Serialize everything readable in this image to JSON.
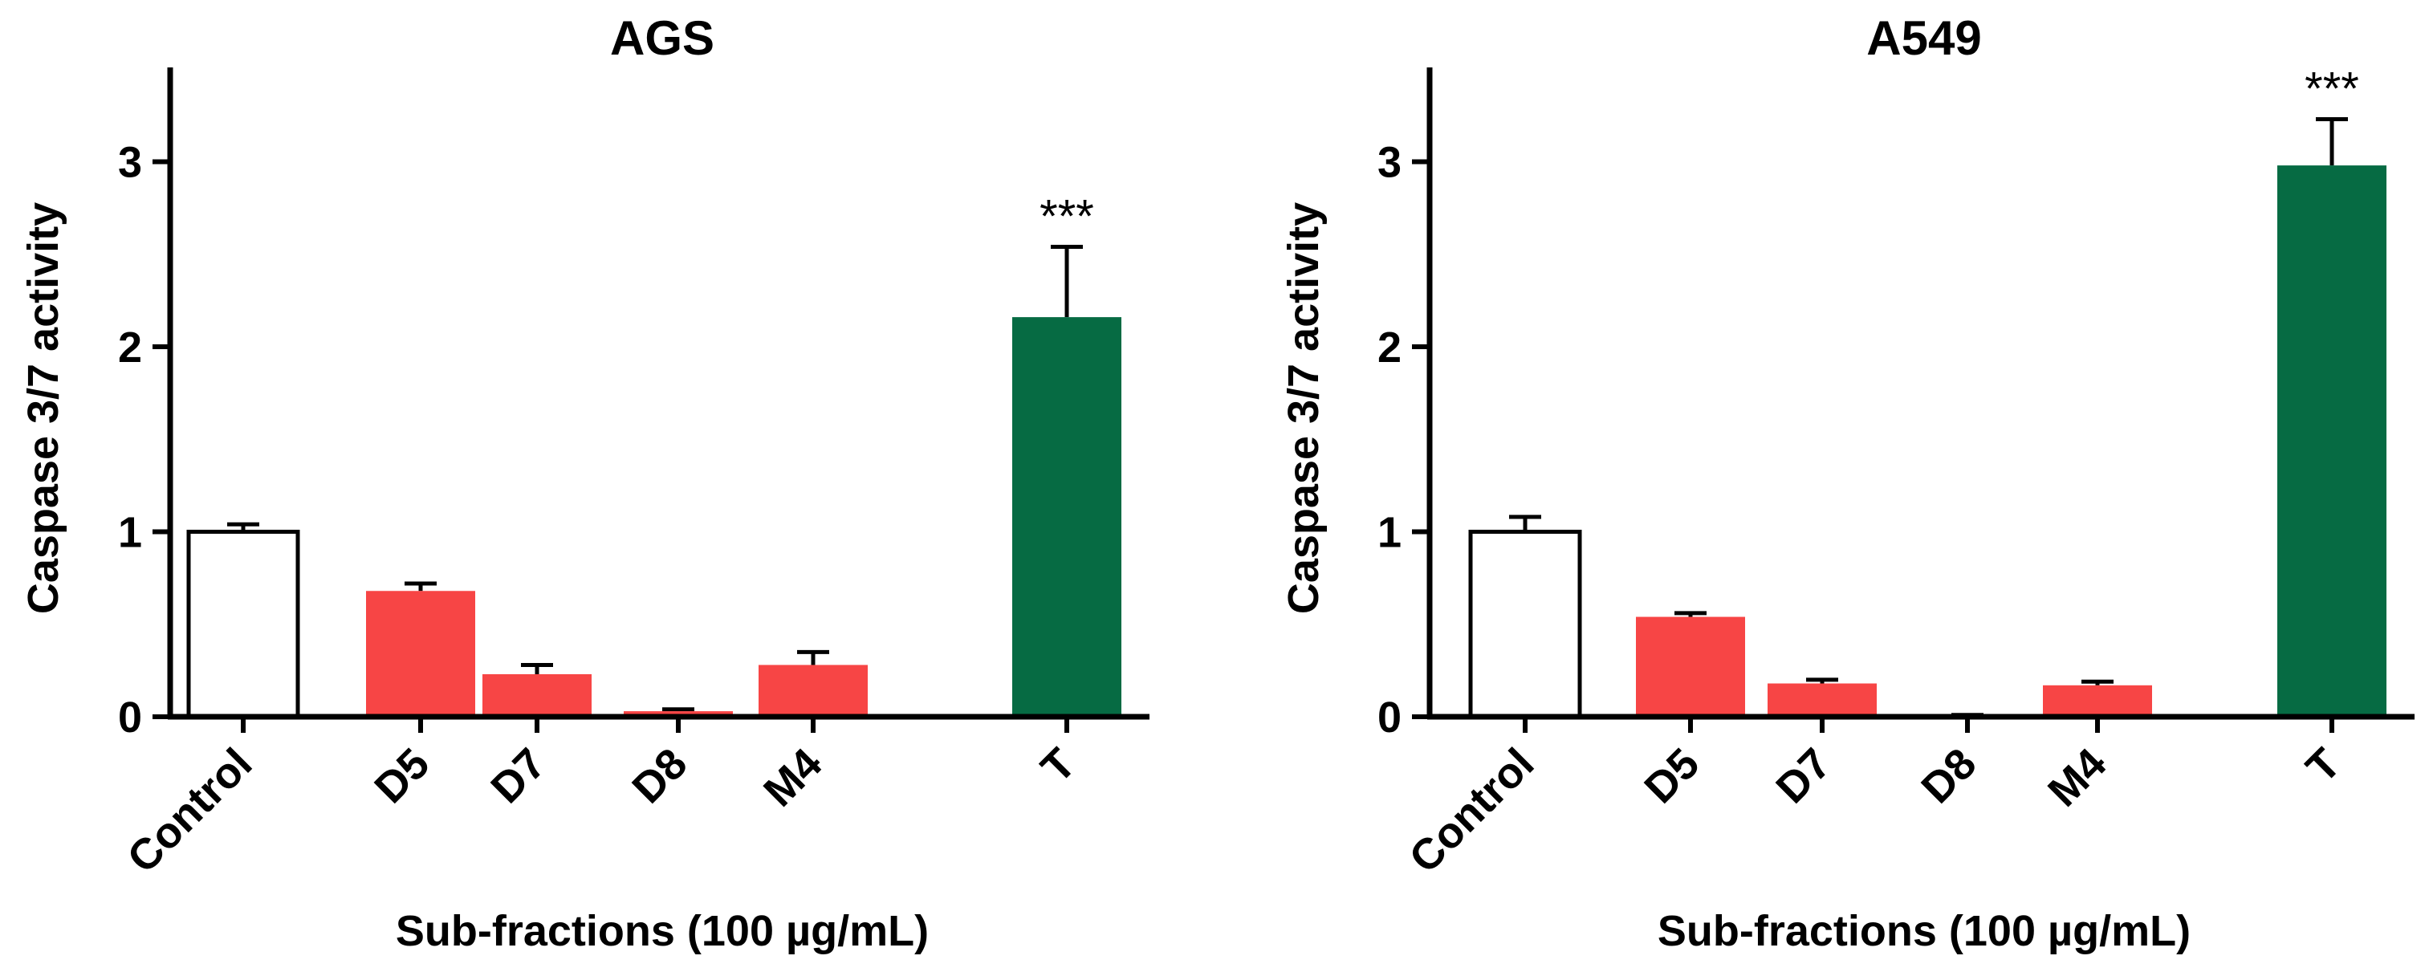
{
  "colors": {
    "control": "#ffffff",
    "subfraction": "#f74545",
    "treatment": "#066b43",
    "axis": "#000000"
  },
  "chart_data": [
    {
      "type": "bar",
      "title": "AGS",
      "categories": [
        "Control",
        "D5",
        "D7",
        "D8",
        "M4",
        "T"
      ],
      "values": [
        1.0,
        0.68,
        0.23,
        0.03,
        0.28,
        2.16
      ],
      "errors": [
        0.04,
        0.04,
        0.05,
        0.01,
        0.07,
        0.38
      ],
      "significance": [
        "",
        "",
        "",
        "",
        "",
        "***"
      ],
      "xlabel": "Sub-fractions (100 µg/mL)",
      "ylabel": "Caspase 3/7 activity",
      "ylim": [
        0,
        3.5
      ],
      "yticks": [
        "0",
        "1",
        "2",
        "3"
      ],
      "bar_color_keys": [
        "control",
        "subfraction",
        "subfraction",
        "subfraction",
        "subfraction",
        "treatment"
      ],
      "grid": false
    },
    {
      "type": "bar",
      "title": "A549",
      "categories": [
        "Control",
        "D5",
        "D7",
        "D8",
        "M4",
        "T"
      ],
      "values": [
        1.0,
        0.54,
        0.18,
        0.0,
        0.17,
        2.98
      ],
      "errors": [
        0.08,
        0.02,
        0.02,
        0.01,
        0.02,
        0.25
      ],
      "significance": [
        "",
        "",
        "",
        "",
        "",
        "***"
      ],
      "xlabel": "Sub-fractions (100 µg/mL)",
      "ylabel": "Caspase 3/7 activity",
      "ylim": [
        0,
        3.5
      ],
      "yticks": [
        "0",
        "1",
        "2",
        "3"
      ],
      "bar_color_keys": [
        "control",
        "subfraction",
        "subfraction",
        "subfraction",
        "subfraction",
        "treatment"
      ],
      "grid": false
    }
  ]
}
